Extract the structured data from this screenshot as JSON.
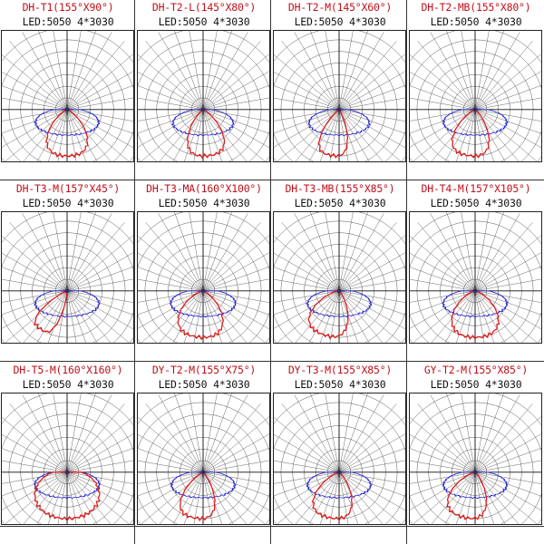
{
  "colors": {
    "title": "#c0101a",
    "blue_curve": "#2020d8",
    "red_curve": "#e01818",
    "grid": "#555555"
  },
  "panels": [
    {
      "title": "DH-T1(155°X90°)",
      "led": "LED:5050 4*3030",
      "blue_half_angle": 77.5,
      "red_half_angle": 45,
      "red_tilt": 0
    },
    {
      "title": "DH-T2-L(145°X80°)",
      "led": "LED:5050 4*3030",
      "blue_half_angle": 72.5,
      "red_half_angle": 40,
      "red_tilt": 5
    },
    {
      "title": "DH-T2-M(145°X60°)",
      "led": "LED:5050 4*3030",
      "blue_half_angle": 72.5,
      "red_half_angle": 30,
      "red_tilt": -10
    },
    {
      "title": "DH-T2-MB(155°X80°)",
      "led": "LED:5050 4*3030",
      "blue_half_angle": 77.5,
      "red_half_angle": 40,
      "red_tilt": -8
    },
    {
      "title": "DH-T3-M(157°X45°)",
      "led": "LED:5050 4*3030",
      "blue_half_angle": 78.5,
      "red_half_angle": 22.5,
      "red_tilt": -35
    },
    {
      "title": "DH-T3-MA(160°X100°)",
      "led": "LED:5050 4*3030",
      "blue_half_angle": 80,
      "red_half_angle": 50,
      "red_tilt": -5
    },
    {
      "title": "DH-T3-MB(155°X85°)",
      "led": "LED:5050 4*3030",
      "blue_half_angle": 77.5,
      "red_half_angle": 42.5,
      "red_tilt": -20
    },
    {
      "title": "DH-T4-M(157°X105°)",
      "led": "LED:5050 4*3030",
      "blue_half_angle": 78.5,
      "red_half_angle": 52.5,
      "red_tilt": 0
    },
    {
      "title": "DH-T5-M(160°X160°)",
      "led": "LED:5050 4*3030",
      "blue_half_angle": 80,
      "red_half_angle": 80,
      "red_tilt": 0
    },
    {
      "title": "DY-T2-M(155°X75°)",
      "led": "LED:5050 4*3030",
      "blue_half_angle": 77.5,
      "red_half_angle": 37.5,
      "red_tilt": -10
    },
    {
      "title": "DY-T3-M(155°X85°)",
      "led": "LED:5050 4*3030",
      "blue_half_angle": 77.5,
      "red_half_angle": 42.5,
      "red_tilt": -12
    },
    {
      "title": "GY-T2-M(155°X85°)",
      "led": "LED:5050 4*3030",
      "blue_half_angle": 77.5,
      "red_half_angle": 42.5,
      "red_tilt": -15
    }
  ]
}
